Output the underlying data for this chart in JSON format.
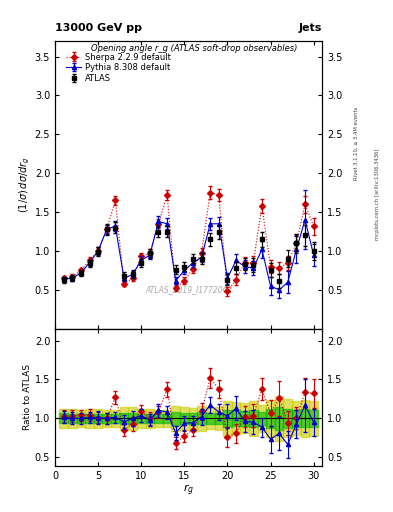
{
  "title_top": "13000 GeV pp",
  "title_right": "Jets",
  "ylabel_main": "(1/σ) dσ/dr_g",
  "ylabel_ratio": "Ratio to ATLAS",
  "xlabel": "r_g",
  "subtitle": "Opening angle r_g (ATLAS soft-drop observables)",
  "watermark": "ATLAS_2019_I1772062",
  "right_label1": "Rivet 3.1.10, ≥ 3.4M events",
  "right_label2": "mcplots.cern.ch [arXiv:1306.3436]",
  "xlim": [
    0,
    31
  ],
  "ylim_main": [
    0,
    3.7
  ],
  "ylim_ratio": [
    0.39,
    2.15
  ],
  "atlas_x": [
    1,
    2,
    3,
    4,
    5,
    6,
    7,
    8,
    9,
    10,
    11,
    12,
    13,
    14,
    15,
    16,
    17,
    18,
    19,
    20,
    21,
    22,
    23,
    24,
    25,
    26,
    27,
    28,
    29,
    30
  ],
  "atlas_y": [
    0.63,
    0.65,
    0.72,
    0.84,
    0.99,
    1.28,
    1.3,
    0.68,
    0.7,
    0.85,
    0.97,
    1.25,
    1.25,
    0.76,
    0.8,
    0.9,
    0.9,
    1.15,
    1.25,
    0.63,
    0.78,
    0.83,
    0.82,
    1.15,
    0.75,
    0.62,
    0.9,
    1.1,
    1.2,
    1.0
  ],
  "atlas_yerr": [
    0.04,
    0.04,
    0.04,
    0.05,
    0.06,
    0.07,
    0.07,
    0.05,
    0.05,
    0.05,
    0.06,
    0.07,
    0.07,
    0.06,
    0.06,
    0.06,
    0.07,
    0.08,
    0.09,
    0.07,
    0.08,
    0.08,
    0.09,
    0.1,
    0.09,
    0.09,
    0.11,
    0.12,
    0.14,
    0.11
  ],
  "pythia_x": [
    1,
    2,
    3,
    4,
    5,
    6,
    7,
    8,
    9,
    10,
    11,
    12,
    13,
    14,
    15,
    16,
    17,
    18,
    19,
    20,
    21,
    22,
    23,
    24,
    25,
    26,
    27,
    28,
    29,
    30
  ],
  "pythia_y": [
    0.64,
    0.65,
    0.72,
    0.85,
    1.0,
    1.28,
    1.32,
    0.65,
    0.7,
    0.88,
    0.95,
    1.38,
    1.35,
    0.62,
    0.75,
    0.85,
    0.92,
    1.35,
    1.35,
    0.65,
    0.88,
    0.8,
    0.78,
    1.02,
    0.55,
    0.5,
    0.6,
    1.02,
    1.4,
    0.95
  ],
  "pythia_yerr": [
    0.03,
    0.03,
    0.03,
    0.04,
    0.05,
    0.06,
    0.06,
    0.04,
    0.04,
    0.05,
    0.05,
    0.07,
    0.07,
    0.05,
    0.05,
    0.06,
    0.06,
    0.08,
    0.09,
    0.07,
    0.08,
    0.08,
    0.09,
    0.11,
    0.11,
    0.11,
    0.14,
    0.17,
    0.38,
    0.14
  ],
  "sherpa_x": [
    1,
    2,
    3,
    4,
    5,
    6,
    7,
    8,
    9,
    10,
    11,
    12,
    13,
    14,
    15,
    16,
    17,
    18,
    19,
    20,
    21,
    22,
    23,
    24,
    25,
    26,
    27,
    28,
    29,
    30
  ],
  "sherpa_y": [
    0.65,
    0.67,
    0.75,
    0.88,
    1.0,
    1.28,
    1.65,
    0.58,
    0.65,
    0.93,
    0.97,
    1.35,
    1.72,
    0.52,
    0.62,
    0.77,
    0.98,
    1.75,
    1.72,
    0.48,
    0.63,
    0.85,
    0.85,
    1.58,
    0.8,
    0.78,
    0.85,
    1.1,
    1.6,
    1.32
  ],
  "sherpa_yerr": [
    0.03,
    0.03,
    0.03,
    0.04,
    0.04,
    0.05,
    0.06,
    0.03,
    0.04,
    0.04,
    0.05,
    0.06,
    0.07,
    0.04,
    0.04,
    0.05,
    0.06,
    0.08,
    0.08,
    0.06,
    0.07,
    0.07,
    0.08,
    0.09,
    0.08,
    0.08,
    0.09,
    0.1,
    0.11,
    0.11
  ],
  "atlas_color": "#000000",
  "pythia_color": "#0000cc",
  "sherpa_color": "#cc0000",
  "band_green": "#00bb00",
  "band_yellow": "#cccc00",
  "xticks": [
    0,
    5,
    10,
    15,
    20,
    25,
    30
  ],
  "yticks_main": [
    0.5,
    1.0,
    1.5,
    2.0,
    2.5,
    3.0,
    3.5
  ],
  "yticks_ratio": [
    0.5,
    1.0,
    1.5,
    2.0
  ]
}
